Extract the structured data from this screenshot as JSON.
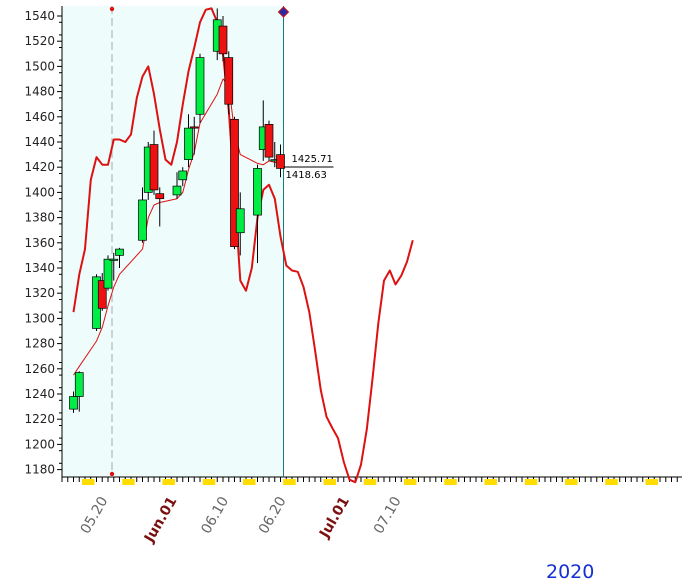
{
  "chart_data": {
    "type": "candlestick",
    "ylim": [
      1175,
      1545
    ],
    "y_ticks": [
      1180,
      1200,
      1220,
      1240,
      1260,
      1280,
      1300,
      1320,
      1340,
      1360,
      1380,
      1400,
      1420,
      1440,
      1460,
      1480,
      1500,
      1520,
      1540
    ],
    "x_labels": [
      {
        "text": "05.20",
        "date": "2020-05-20",
        "major": false
      },
      {
        "text": "Jun.01",
        "date": "2020-06-01",
        "major": true
      },
      {
        "text": "06.10",
        "date": "2020-06-10",
        "major": false
      },
      {
        "text": "06.20",
        "date": "2020-06-20",
        "major": false
      },
      {
        "text": "Jul.01",
        "date": "2020-07-01",
        "major": true
      },
      {
        "text": "07.10",
        "date": "2020-07-10",
        "major": false
      }
    ],
    "year_label": "2020",
    "price_labels": [
      "1425.71",
      "1418.63"
    ],
    "candles": [
      {
        "date": "2020-05-14",
        "open": 1228,
        "high": 1242,
        "low": 1225,
        "close": 1238
      },
      {
        "date": "2020-05-15",
        "open": 1238,
        "high": 1258,
        "low": 1226,
        "close": 1257
      },
      {
        "date": "2020-05-18",
        "open": 1292,
        "high": 1335,
        "low": 1290,
        "close": 1333
      },
      {
        "date": "2020-05-19",
        "open": 1330,
        "high": 1336,
        "low": 1306,
        "close": 1308
      },
      {
        "date": "2020-05-20",
        "open": 1324,
        "high": 1350,
        "low": 1322,
        "close": 1347
      },
      {
        "date": "2020-05-21",
        "open": 1346,
        "high": 1352,
        "low": 1330,
        "close": 1347
      },
      {
        "date": "2020-05-22",
        "open": 1350,
        "high": 1356,
        "low": 1340,
        "close": 1355
      },
      {
        "date": "2020-05-26",
        "open": 1362,
        "high": 1404,
        "low": 1360,
        "close": 1394
      },
      {
        "date": "2020-05-27",
        "open": 1400,
        "high": 1440,
        "low": 1394,
        "close": 1436
      },
      {
        "date": "2020-05-28",
        "open": 1438,
        "high": 1449,
        "low": 1398,
        "close": 1402
      },
      {
        "date": "2020-05-29",
        "open": 1399,
        "high": 1404,
        "low": 1373,
        "close": 1395
      },
      {
        "date": "2020-06-01",
        "open": 1398,
        "high": 1416,
        "low": 1395,
        "close": 1405
      },
      {
        "date": "2020-06-02",
        "open": 1410,
        "high": 1420,
        "low": 1405,
        "close": 1417
      },
      {
        "date": "2020-06-03",
        "open": 1426,
        "high": 1462,
        "low": 1420,
        "close": 1451
      },
      {
        "date": "2020-06-04",
        "open": 1452,
        "high": 1460,
        "low": 1430,
        "close": 1451
      },
      {
        "date": "2020-06-05",
        "open": 1462,
        "high": 1510,
        "low": 1455,
        "close": 1507
      },
      {
        "date": "2020-06-08",
        "open": 1512,
        "high": 1546,
        "low": 1505,
        "close": 1537
      },
      {
        "date": "2020-06-09",
        "open": 1532,
        "high": 1540,
        "low": 1504,
        "close": 1510
      },
      {
        "date": "2020-06-10",
        "open": 1507,
        "high": 1512,
        "low": 1462,
        "close": 1470
      },
      {
        "date": "2020-06-11",
        "open": 1458,
        "high": 1460,
        "low": 1355,
        "close": 1357
      },
      {
        "date": "2020-06-12",
        "open": 1368,
        "high": 1400,
        "low": 1350,
        "close": 1387
      },
      {
        "date": "2020-06-15",
        "open": 1382,
        "high": 1422,
        "low": 1344,
        "close": 1419
      },
      {
        "date": "2020-06-16",
        "open": 1434,
        "high": 1473,
        "low": 1425,
        "close": 1452
      },
      {
        "date": "2020-06-17",
        "open": 1454,
        "high": 1457,
        "low": 1425,
        "close": 1428
      },
      {
        "date": "2020-06-18",
        "open": 1425,
        "high": 1440,
        "low": 1420,
        "close": 1426
      },
      {
        "date": "2020-06-19",
        "open": 1430,
        "high": 1438,
        "low": 1412,
        "close": 1419
      }
    ],
    "series": [
      {
        "points": [
          [
            "2020-05-14",
            1305
          ],
          [
            "2020-05-15",
            1335
          ],
          [
            "2020-05-16",
            1355
          ],
          [
            "2020-05-17",
            1410
          ],
          [
            "2020-05-18",
            1428
          ],
          [
            "2020-05-19",
            1422
          ],
          [
            "2020-05-20",
            1422
          ],
          [
            "2020-05-21",
            1442
          ],
          [
            "2020-05-22",
            1442
          ],
          [
            "2020-05-23",
            1440
          ],
          [
            "2020-05-24",
            1446
          ],
          [
            "2020-05-25",
            1475
          ],
          [
            "2020-05-26",
            1492
          ],
          [
            "2020-05-27",
            1500
          ],
          [
            "2020-05-28",
            1478
          ],
          [
            "2020-05-29",
            1450
          ],
          [
            "2020-05-30",
            1426
          ],
          [
            "2020-05-31",
            1422
          ],
          [
            "2020-06-01",
            1440
          ],
          [
            "2020-06-02",
            1470
          ],
          [
            "2020-06-03",
            1496
          ],
          [
            "2020-06-04",
            1515
          ],
          [
            "2020-06-05",
            1535
          ],
          [
            "2020-06-06",
            1545
          ],
          [
            "2020-06-07",
            1546
          ],
          [
            "2020-06-08",
            1535
          ],
          [
            "2020-06-09",
            1510
          ],
          [
            "2020-06-10",
            1465
          ],
          [
            "2020-06-11",
            1400
          ],
          [
            "2020-06-12",
            1330
          ],
          [
            "2020-06-13",
            1322
          ],
          [
            "2020-06-14",
            1340
          ],
          [
            "2020-06-15",
            1380
          ],
          [
            "2020-06-16",
            1402
          ],
          [
            "2020-06-17",
            1406
          ],
          [
            "2020-06-18",
            1395
          ],
          [
            "2020-06-19",
            1365
          ],
          [
            "2020-06-20",
            1342
          ],
          [
            "2020-06-21",
            1338
          ],
          [
            "2020-06-22",
            1337
          ],
          [
            "2020-06-23",
            1325
          ],
          [
            "2020-06-24",
            1305
          ],
          [
            "2020-06-25",
            1275
          ],
          [
            "2020-06-26",
            1243
          ],
          [
            "2020-06-27",
            1222
          ],
          [
            "2020-06-28",
            1213
          ],
          [
            "2020-06-29",
            1205
          ],
          [
            "2020-06-30",
            1186
          ],
          [
            "2020-07-01",
            1172
          ],
          [
            "2020-07-02",
            1170
          ],
          [
            "2020-07-03",
            1184
          ],
          [
            "2020-07-04",
            1212
          ],
          [
            "2020-07-05",
            1252
          ],
          [
            "2020-07-06",
            1296
          ],
          [
            "2020-07-07",
            1330
          ],
          [
            "2020-07-08",
            1338
          ],
          [
            "2020-07-09",
            1327
          ],
          [
            "2020-07-10",
            1334
          ],
          [
            "2020-07-11",
            1345
          ],
          [
            "2020-07-12",
            1362
          ]
        ]
      },
      {
        "points": [
          [
            "2020-05-14",
            1255
          ],
          [
            "2020-05-15",
            1262
          ],
          [
            "2020-05-18",
            1282
          ],
          [
            "2020-05-19",
            1293
          ],
          [
            "2020-05-20",
            1310
          ],
          [
            "2020-05-21",
            1325
          ],
          [
            "2020-05-22",
            1335
          ],
          [
            "2020-05-26",
            1355
          ],
          [
            "2020-05-27",
            1380
          ],
          [
            "2020-05-28",
            1390
          ],
          [
            "2020-05-29",
            1392
          ],
          [
            "2020-06-01",
            1395
          ],
          [
            "2020-06-02",
            1400
          ],
          [
            "2020-06-03",
            1418
          ],
          [
            "2020-06-04",
            1432
          ],
          [
            "2020-06-05",
            1455
          ],
          [
            "2020-06-08",
            1478
          ],
          [
            "2020-06-09",
            1490
          ],
          [
            "2020-06-10",
            1485
          ],
          [
            "2020-06-11",
            1448
          ],
          [
            "2020-06-12",
            1430
          ],
          [
            "2020-06-15",
            1423
          ],
          [
            "2020-06-16",
            1422
          ],
          [
            "2020-06-17",
            1425
          ],
          [
            "2020-06-18",
            1424
          ],
          [
            "2020-06-19",
            1423
          ]
        ]
      }
    ],
    "colors": {
      "background": "#eefcfc",
      "up_candle": "#00ee44",
      "down_candle": "#ee1111",
      "line": "#dd1111",
      "date_label": "#666666",
      "major_date_label": "#7a1010",
      "year_label": "#1530d0",
      "weekend_marker": "#ffdd00"
    }
  }
}
